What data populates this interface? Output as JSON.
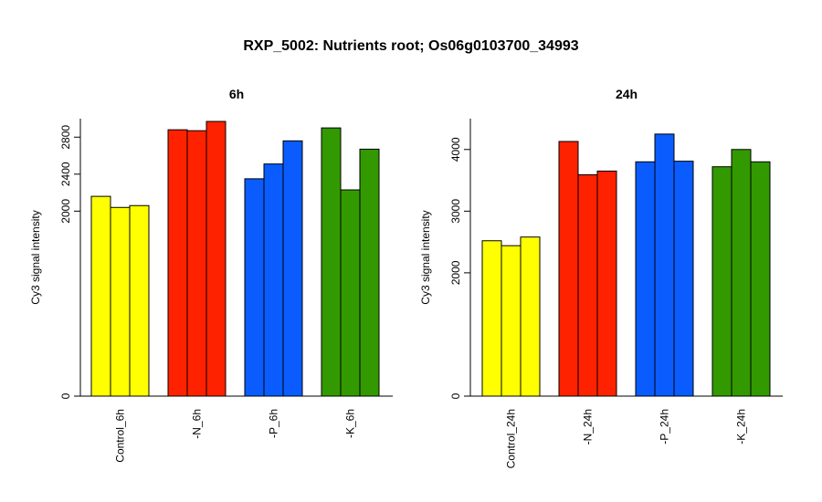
{
  "title": "RXP_5002: Nutrients root; Os06g0103700_34993",
  "colors": {
    "Control": "#ffff00",
    "N": "#ff2200",
    "P": "#0a5cff",
    "K": "#339900"
  },
  "chart_data": [
    {
      "type": "bar",
      "title": "6h",
      "ylabel": "Cy3 signal intensity",
      "ylim": [
        0,
        3000
      ],
      "yticks": [
        0,
        2000,
        2400,
        2800
      ],
      "categories": [
        "Control_6h",
        "-N_6h",
        "-P_6h",
        "-K_6h"
      ],
      "groups": [
        {
          "category": "Control_6h",
          "color_key": "Control",
          "values": [
            2160,
            2040,
            2060
          ]
        },
        {
          "category": "-N_6h",
          "color_key": "N",
          "values": [
            2880,
            2870,
            2970
          ]
        },
        {
          "category": "-P_6h",
          "color_key": "P",
          "values": [
            2350,
            2510,
            2760
          ]
        },
        {
          "category": "-K_6h",
          "color_key": "K",
          "values": [
            2900,
            2230,
            2670
          ]
        }
      ]
    },
    {
      "type": "bar",
      "title": "24h",
      "ylabel": "Cy3 signal intensity",
      "ylim": [
        0,
        4500
      ],
      "yticks": [
        0,
        2000,
        3000,
        4000
      ],
      "categories": [
        "Control_24h",
        "-N_24h",
        "-P_24h",
        "-K_24h"
      ],
      "groups": [
        {
          "category": "Control_24h",
          "color_key": "Control",
          "values": [
            2520,
            2440,
            2580
          ]
        },
        {
          "category": "-N_24h",
          "color_key": "N",
          "values": [
            4130,
            3590,
            3650
          ]
        },
        {
          "category": "-P_24h",
          "color_key": "P",
          "values": [
            3800,
            4250,
            3810
          ]
        },
        {
          "category": "-K_24h",
          "color_key": "K",
          "values": [
            3720,
            4000,
            3800
          ]
        }
      ]
    }
  ]
}
